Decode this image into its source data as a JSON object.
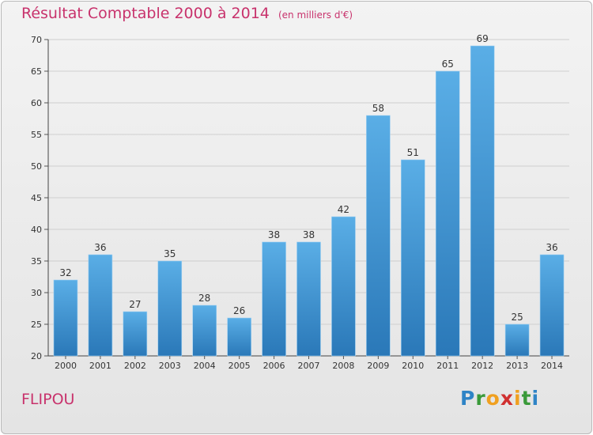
{
  "header": {
    "title": "Résultat Comptable 2000 à 2014",
    "subtitle": "(en milliers d'€)"
  },
  "footer": {
    "commune": "FLIPOU",
    "brand": {
      "letters": [
        "P",
        "r",
        "o",
        "x",
        "i",
        "t",
        "i"
      ],
      "colors": [
        "#2e84c6",
        "#3a9a3a",
        "#f0a020",
        "#d03030",
        "#f0a020",
        "#3a9a3a",
        "#2e84c6"
      ]
    }
  },
  "chart_data": {
    "type": "bar",
    "title": "Résultat Comptable 2000 à 2014",
    "subtitle": "(en milliers d'€)",
    "xlabel": "",
    "ylabel": "",
    "categories": [
      "2000",
      "2001",
      "2002",
      "2003",
      "2004",
      "2005",
      "2006",
      "2007",
      "2008",
      "2009",
      "2010",
      "2011",
      "2012",
      "2013",
      "2014"
    ],
    "values": [
      32,
      36,
      27,
      35,
      28,
      26,
      38,
      38,
      42,
      58,
      51,
      65,
      69,
      25,
      36
    ],
    "ylim": [
      20,
      70
    ],
    "yticks": [
      20,
      25,
      30,
      35,
      40,
      45,
      50,
      55,
      60,
      65,
      70
    ],
    "grid": true,
    "bar_color_top": "#5aaee6",
    "bar_color_bottom": "#2a78b8"
  }
}
